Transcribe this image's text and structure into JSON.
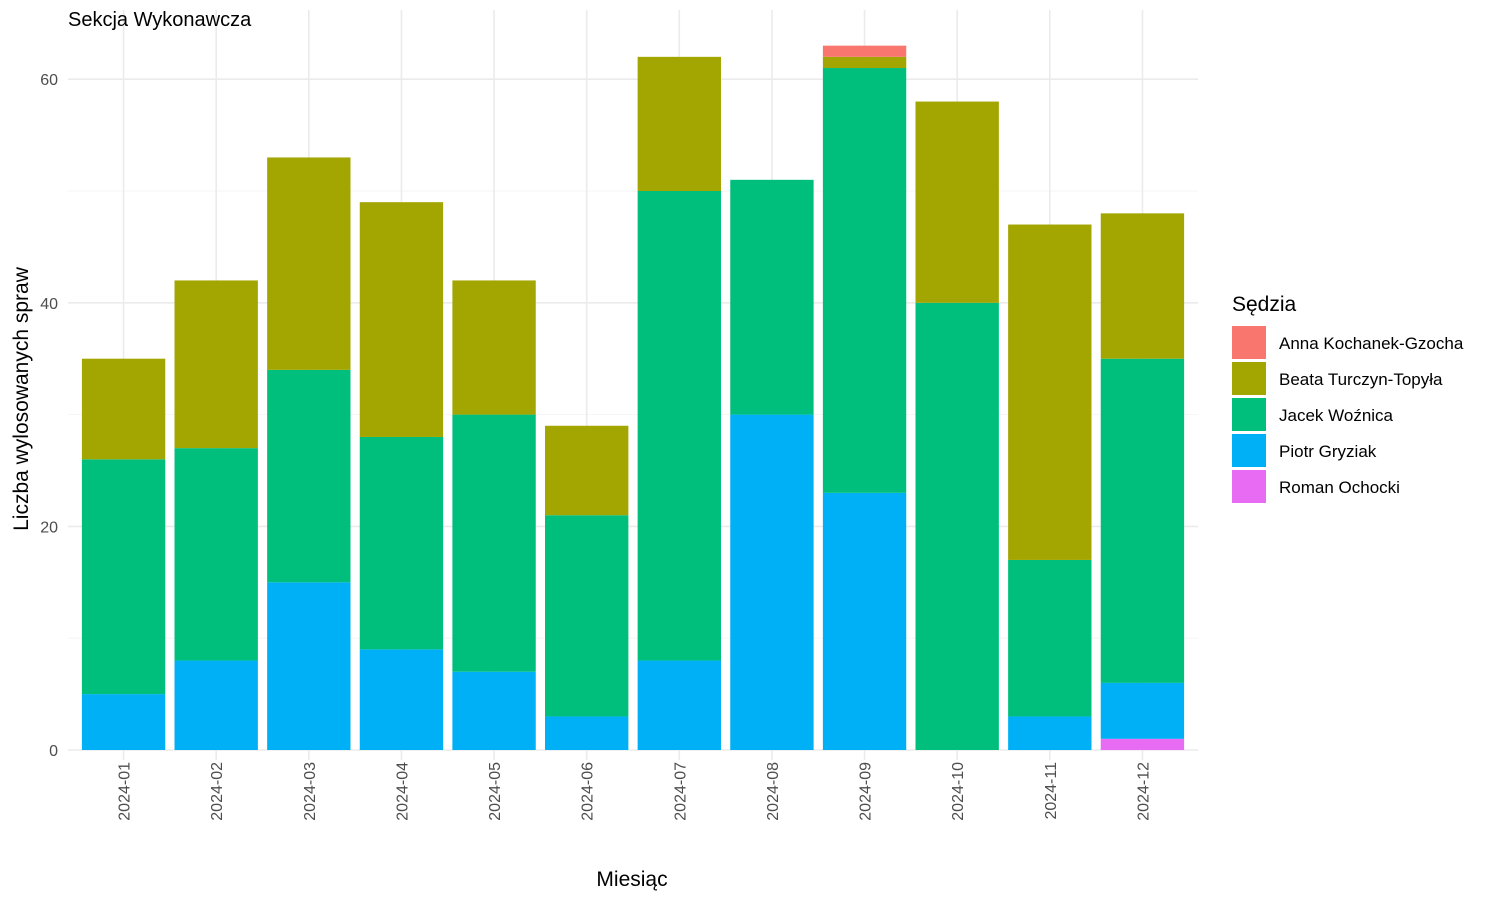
{
  "chart_data": {
    "type": "bar",
    "stacked": true,
    "title": "Sekcja Wykonawcza",
    "xlabel": "Miesiąc",
    "ylabel": "Liczba wylosowanych spraw",
    "ylim": [
      0,
      63
    ],
    "yticks": [
      0,
      20,
      40,
      60
    ],
    "grid": true,
    "legend_title": "Sędzia",
    "legend_position": "right",
    "categories": [
      "2024-01",
      "2024-02",
      "2024-03",
      "2024-04",
      "2024-05",
      "2024-06",
      "2024-07",
      "2024-08",
      "2024-09",
      "2024-10",
      "2024-11",
      "2024-12"
    ],
    "series": [
      {
        "name": "Anna Kochanek-Gzocha",
        "color": "#F8766D",
        "values": [
          0,
          0,
          0,
          0,
          0,
          0,
          0,
          0,
          1,
          0,
          0,
          0
        ]
      },
      {
        "name": "Beata Turczyn-Topyła",
        "color": "#A3A500",
        "values": [
          9,
          15,
          19,
          21,
          12,
          8,
          12,
          0,
          1,
          18,
          30,
          13
        ]
      },
      {
        "name": "Jacek Woźnica",
        "color": "#00BF7D",
        "values": [
          21,
          19,
          19,
          19,
          23,
          18,
          42,
          21,
          38,
          40,
          14,
          29
        ]
      },
      {
        "name": "Piotr Gryziak",
        "color": "#00B0F6",
        "values": [
          5,
          8,
          15,
          9,
          7,
          3,
          8,
          30,
          23,
          0,
          3,
          5
        ]
      },
      {
        "name": "Roman Ochocki",
        "color": "#E76BF3",
        "values": [
          0,
          0,
          0,
          0,
          0,
          0,
          0,
          0,
          0,
          0,
          0,
          1
        ]
      }
    ]
  }
}
